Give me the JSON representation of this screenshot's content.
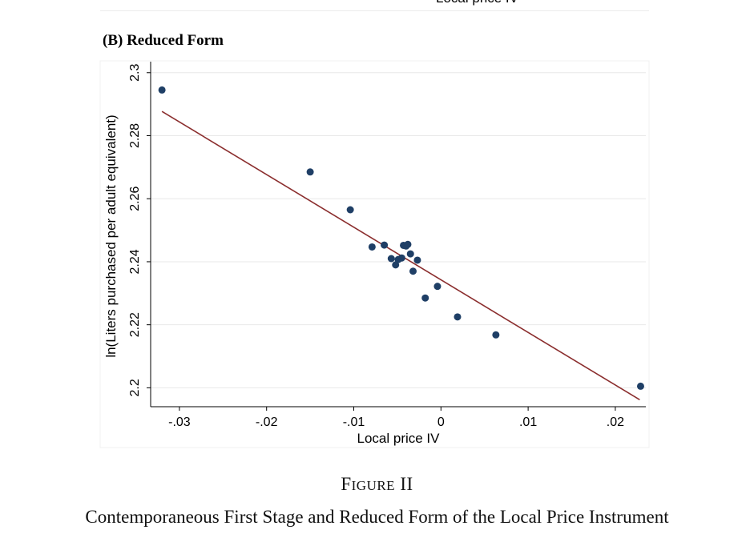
{
  "top_panel": {
    "xlabel": "Local price IV"
  },
  "panel_title": "(B)  Reduced Form",
  "figure": {
    "label": "FIGURE II",
    "caption": "Contemporaneous First Stage and Reduced Form of the Local Price Instrument"
  },
  "colors": {
    "points": "#1f3f66",
    "fit_line": "#8b2e2e",
    "grid": "#e8e8e8",
    "axis": "#000000"
  },
  "chart_data": {
    "type": "scatter",
    "title": "(B)  Reduced Form",
    "xlabel": "Local price IV",
    "ylabel": "ln(Liters purchased per adult equivalent)",
    "xlim": [
      -0.0333,
      0.0235
    ],
    "ylim": [
      2.194,
      2.3035
    ],
    "xticks": [
      -0.03,
      -0.02,
      -0.01,
      0,
      0.01,
      0.02
    ],
    "xtick_labels": [
      "-.03",
      "-.02",
      "-.01",
      "0",
      ".01",
      ".02"
    ],
    "yticks": [
      2.2,
      2.22,
      2.24,
      2.26,
      2.28,
      2.3
    ],
    "ytick_labels": [
      "2.2",
      "2.22",
      "2.24",
      "2.26",
      "2.28",
      "2.3"
    ],
    "grid": "horizontal",
    "points": [
      {
        "x": -0.032,
        "y": 2.2945
      },
      {
        "x": -0.015,
        "y": 2.2685
      },
      {
        "x": -0.0104,
        "y": 2.2565
      },
      {
        "x": -0.0079,
        "y": 2.2447
      },
      {
        "x": -0.0065,
        "y": 2.2453
      },
      {
        "x": -0.0057,
        "y": 2.241
      },
      {
        "x": -0.0052,
        "y": 2.239
      },
      {
        "x": -0.0049,
        "y": 2.2407
      },
      {
        "x": -0.0045,
        "y": 2.2412
      },
      {
        "x": -0.0043,
        "y": 2.2452
      },
      {
        "x": -0.004,
        "y": 2.245
      },
      {
        "x": -0.0038,
        "y": 2.2455
      },
      {
        "x": -0.0035,
        "y": 2.2425
      },
      {
        "x": -0.0032,
        "y": 2.237
      },
      {
        "x": -0.0027,
        "y": 2.2405
      },
      {
        "x": -0.0018,
        "y": 2.2285
      },
      {
        "x": -0.0004,
        "y": 2.2322
      },
      {
        "x": 0.0019,
        "y": 2.2225
      },
      {
        "x": 0.0063,
        "y": 2.2168
      },
      {
        "x": 0.0229,
        "y": 2.2005
      }
    ],
    "fit_line": {
      "x": [
        -0.032,
        0.0228
      ],
      "y": [
        2.2877,
        2.1962
      ]
    }
  }
}
